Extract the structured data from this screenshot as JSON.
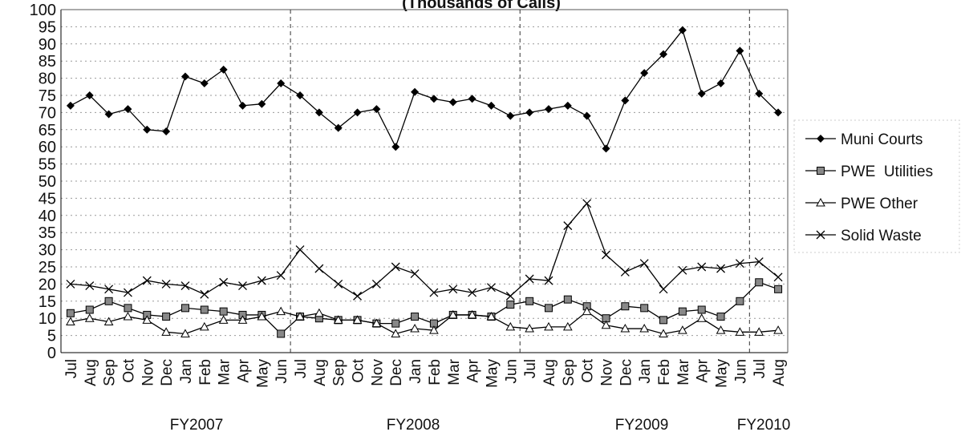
{
  "chart_data": {
    "type": "line",
    "title": "(Thousands of Calls)",
    "categories": [
      "Jul",
      "Aug",
      "Sep",
      "Oct",
      "Nov",
      "Dec",
      "Jan",
      "Feb",
      "Mar",
      "Apr",
      "May",
      "Jun",
      "Jul",
      "Aug",
      "Sep",
      "Oct",
      "Nov",
      "Dec",
      "Jan",
      "Feb",
      "Mar",
      "Apr",
      "May",
      "Jun",
      "Jul",
      "Aug",
      "Sep",
      "Oct",
      "Nov",
      "Dec",
      "Jan",
      "Feb",
      "Mar",
      "Apr",
      "May",
      "Jun",
      "Jul",
      "Aug"
    ],
    "groups": [
      "FY2007",
      "FY2008",
      "FY2009",
      "FY2010"
    ],
    "series": [
      {
        "name": "Muni Courts",
        "color": "#000000",
        "marker": "diamond",
        "values": [
          72,
          75,
          69.5,
          71,
          65,
          64.5,
          80.5,
          78.5,
          82.5,
          72,
          72.5,
          78.5,
          75,
          70,
          65.5,
          70,
          71,
          60,
          76,
          74,
          73,
          74,
          72,
          69,
          70,
          71,
          72,
          69,
          59.5,
          73.5,
          81.5,
          87,
          94,
          75.5,
          78.5,
          88,
          75.5,
          70
        ]
      },
      {
        "name": "PWE  Utilities",
        "color": "#000000",
        "marker": "square",
        "values": [
          11.5,
          12.5,
          15,
          13,
          11,
          10.5,
          13,
          12.5,
          12,
          11,
          11,
          5.5,
          10.5,
          10,
          9.5,
          9.5,
          8.5,
          8.5,
          10.5,
          8.5,
          11,
          11,
          10.5,
          14,
          15,
          13,
          15.5,
          13.5,
          10,
          13.5,
          13,
          9.5,
          12,
          12.5,
          10.5,
          15,
          20.5,
          18.5
        ]
      },
      {
        "name": "PWE Other",
        "color": "#000000",
        "marker": "triangle",
        "values": [
          9,
          10,
          9,
          10.5,
          9.5,
          6,
          5.5,
          7.5,
          9.5,
          9.5,
          10.5,
          12,
          10.5,
          11.5,
          9.5,
          9.5,
          8.5,
          5.5,
          7,
          6.5,
          11,
          11,
          10.5,
          7.5,
          7,
          7.5,
          7.5,
          12,
          8,
          7,
          7,
          5.5,
          6.5,
          10,
          6.5,
          6,
          6,
          6.5
        ]
      },
      {
        "name": "Solid Waste",
        "color": "#000000",
        "marker": "cross",
        "values": [
          20,
          19.5,
          18.5,
          17.5,
          21,
          20,
          19.5,
          17,
          20.5,
          19.5,
          21,
          22.5,
          30,
          24.5,
          20,
          16.5,
          20,
          25,
          23,
          17.5,
          18.5,
          17.5,
          19,
          16.5,
          21.5,
          21,
          37,
          43.5,
          28.5,
          23.5,
          26,
          18.5,
          24,
          25,
          24.5,
          26,
          26.5,
          22
        ]
      }
    ],
    "ylim": [
      0,
      100
    ],
    "yticks": [
      0,
      5,
      10,
      15,
      20,
      25,
      30,
      35,
      40,
      45,
      50,
      55,
      60,
      65,
      70,
      75,
      80,
      85,
      90,
      95,
      100
    ],
    "grid": true,
    "legend": "right"
  }
}
